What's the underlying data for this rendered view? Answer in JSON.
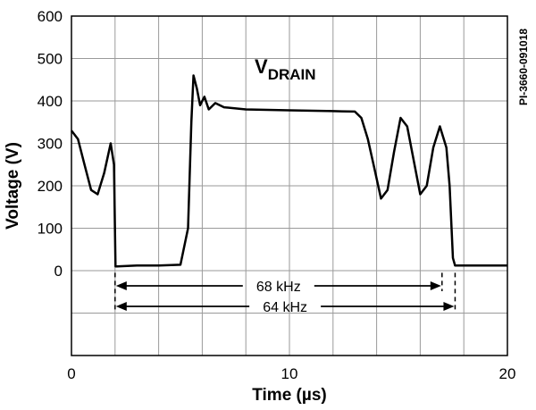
{
  "chart_data": {
    "type": "line",
    "xlabel": "Time (µs)",
    "ylabel": "Voltage (V)",
    "xlim": [
      0,
      20
    ],
    "ylim": [
      -200,
      600
    ],
    "x_ticks": [
      "0",
      "10",
      "20"
    ],
    "y_ticks": [
      "600",
      "500",
      "400",
      "300",
      "200",
      "100",
      "0"
    ],
    "grid": true,
    "figure_id": "PI-3660-091018",
    "series": [
      {
        "name_main": "V",
        "name_sub": "DRAIN",
        "x": [
          0.0,
          0.3,
          0.6,
          0.9,
          1.2,
          1.5,
          1.8,
          1.95,
          2.02,
          2.1,
          3.0,
          4.0,
          5.0,
          5.35,
          5.5,
          5.6,
          5.75,
          5.9,
          6.1,
          6.3,
          6.6,
          7.0,
          8.0,
          10.0,
          12.0,
          13.0,
          13.3,
          13.6,
          13.9,
          14.2,
          14.5,
          14.8,
          15.1,
          15.4,
          15.7,
          16.0,
          16.3,
          16.6,
          16.9,
          17.2,
          17.35,
          17.5,
          17.6,
          18.0,
          19.0,
          20.0
        ],
        "y": [
          330,
          310,
          250,
          190,
          180,
          230,
          300,
          250,
          10,
          10,
          12,
          12,
          14,
          100,
          350,
          460,
          430,
          390,
          410,
          380,
          395,
          385,
          380,
          378,
          376,
          375,
          360,
          310,
          240,
          170,
          190,
          280,
          360,
          340,
          260,
          180,
          200,
          290,
          340,
          290,
          200,
          30,
          12,
          12,
          12,
          12
        ]
      }
    ],
    "annotations": [
      {
        "text": "68 kHz",
        "x_start": 2.0,
        "x_end": 17.0
      },
      {
        "text": "64 kHz",
        "x_start": 2.0,
        "x_end": 17.6
      }
    ]
  }
}
